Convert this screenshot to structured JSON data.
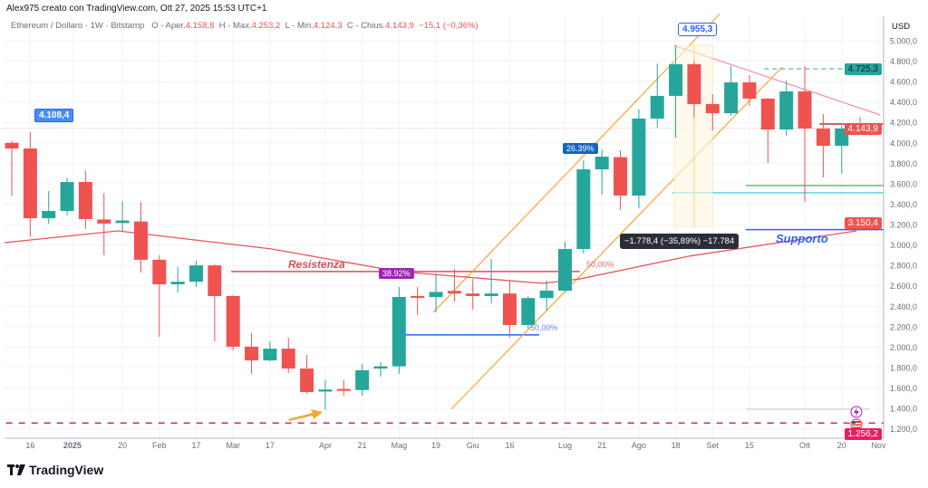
{
  "header": {
    "author_line": "Alex975 creato con TradingView.com, Ott 27, 2025 15:53 UTC+1",
    "symbol": "Ethereum / Dollaro · 1W · Bitstamp",
    "open_label": "O - Aper.",
    "open": "4.158,8",
    "high_label": "H - Max.",
    "high": "4.253,2",
    "low_label": "L - Min.",
    "low": "4.124,3",
    "close_label": "C - Chius.",
    "close": "4.143,9",
    "change": "−15,1 (−0,36%)"
  },
  "brand": "TradingView",
  "colors": {
    "up": "#26a69a",
    "down": "#ef5350",
    "ma": "#f0505a",
    "channel": "#f7a530",
    "accent": "#2962ff",
    "magenta": "#e91e63"
  },
  "chart_data": {
    "type": "candlestick",
    "currency": "USD",
    "interval": "1W",
    "ylim": [
      1150,
      5150
    ],
    "y_ticks": [
      1200,
      1400,
      1600,
      1800,
      2000,
      2200,
      2400,
      2600,
      2800,
      3000,
      3200,
      3400,
      3600,
      3800,
      4000,
      4200,
      4400,
      4600,
      4800,
      5000
    ],
    "y_tick_labels": [
      "1.200,0",
      "1.400,0",
      "1.600,0",
      "1.800,0",
      "2.000,0",
      "2.200,0",
      "2.400,0",
      "2.600,0",
      "2.800,0",
      "3.000,0",
      "3.200,0",
      "3.400,0",
      "3.600,0",
      "3.800,0",
      "4.000,0",
      "4.200,0",
      "4.400,0",
      "4.600,0",
      "4.800,0",
      "5.000,0"
    ],
    "x_ticks": [
      {
        "label": "16",
        "date": "2024-12-16"
      },
      {
        "label": "2025",
        "date": "2025-01-01"
      },
      {
        "label": "20",
        "date": "2025-01-20"
      },
      {
        "label": "Feb",
        "date": "2025-02-03"
      },
      {
        "label": "17",
        "date": "2025-02-17"
      },
      {
        "label": "Mar",
        "date": "2025-03-03"
      },
      {
        "label": "17",
        "date": "2025-03-17"
      },
      {
        "label": "Apr",
        "date": "2025-04-07"
      },
      {
        "label": "21",
        "date": "2025-04-21"
      },
      {
        "label": "Mag",
        "date": "2025-05-05"
      },
      {
        "label": "19",
        "date": "2025-05-19"
      },
      {
        "label": "Giu",
        "date": "2025-06-02"
      },
      {
        "label": "16",
        "date": "2025-06-16"
      },
      {
        "label": "Lug",
        "date": "2025-07-07"
      },
      {
        "label": "21",
        "date": "2025-07-21"
      },
      {
        "label": "Ago",
        "date": "2025-08-04"
      },
      {
        "label": "18",
        "date": "2025-08-18"
      },
      {
        "label": "Set",
        "date": "2025-09-01"
      },
      {
        "label": "15",
        "date": "2025-09-15"
      },
      {
        "label": "Ott",
        "date": "2025-10-06"
      },
      {
        "label": "20",
        "date": "2025-10-20"
      },
      {
        "label": "Nov",
        "date": "2025-11-03"
      }
    ],
    "first_week": "2024-12-09",
    "candles": [
      [
        4000,
        4020,
        3480,
        3945
      ],
      [
        3945,
        4108.4,
        3080,
        3262
      ],
      [
        3262,
        3528,
        3209,
        3333
      ],
      [
        3333,
        3660,
        3290,
        3617
      ],
      [
        3617,
        3730,
        3156,
        3254
      ],
      [
        3250,
        3510,
        2899,
        3210
      ],
      [
        3215,
        3430,
        3138,
        3240
      ],
      [
        3230,
        3422,
        2730,
        2855
      ],
      [
        2855,
        2900,
        2100,
        2615
      ],
      [
        2615,
        2784,
        2535,
        2640
      ],
      [
        2640,
        2846,
        2590,
        2800
      ],
      [
        2800,
        2810,
        2057,
        2500
      ],
      [
        2500,
        2510,
        1968,
        2004
      ],
      [
        2004,
        2137,
        1738,
        1870
      ],
      [
        1870,
        2057,
        1862,
        1985
      ],
      [
        1985,
        2092,
        1747,
        1790
      ],
      [
        1790,
        1924,
        1543,
        1560
      ],
      [
        1565,
        1676,
        1385,
        1585
      ],
      [
        1590,
        1676,
        1525,
        1580
      ],
      [
        1580,
        1835,
        1525,
        1773
      ],
      [
        1790,
        1853,
        1710,
        1812
      ],
      [
        1812,
        2589,
        1738,
        2491
      ],
      [
        2500,
        2589,
        2314,
        2488
      ],
      [
        2490,
        2722,
        2340,
        2540
      ],
      [
        2550,
        2766,
        2447,
        2525
      ],
      [
        2525,
        2668,
        2367,
        2500
      ],
      [
        2500,
        2863,
        2429,
        2525
      ],
      [
        2525,
        2650,
        2092,
        2216
      ],
      [
        2216,
        2500,
        2181,
        2480
      ],
      [
        2480,
        2650,
        2358,
        2553
      ],
      [
        2553,
        3032,
        2540,
        2961
      ],
      [
        2961,
        3830,
        2917,
        3741
      ],
      [
        3741,
        3936,
        3493,
        3865
      ],
      [
        3860,
        3927,
        3342,
        3484
      ],
      [
        3484,
        4330,
        3360,
        4238
      ],
      [
        4238,
        4778,
        4150,
        4460
      ],
      [
        4460,
        4955.3,
        4050,
        4770
      ],
      [
        4770,
        4800,
        4246,
        4380
      ],
      [
        4380,
        4477,
        4122,
        4290
      ],
      [
        4290,
        4752,
        4264,
        4592
      ],
      [
        4592,
        4663,
        4362,
        4433
      ],
      [
        4433,
        4440,
        3803,
        4131
      ],
      [
        4131,
        4610,
        4069,
        4504
      ],
      [
        4504,
        4752,
        3422,
        4140
      ],
      [
        4140,
        4282,
        3661,
        3972
      ],
      [
        3972,
        4167,
        3697,
        4140
      ],
      [
        4158.8,
        4253.2,
        4124.3,
        4143.9
      ]
    ],
    "moving_average": [
      [
        -0.4,
        3023
      ],
      [
        5.75,
        3138
      ],
      [
        14.1,
        2961
      ],
      [
        21,
        2739
      ],
      [
        28.8,
        2624
      ],
      [
        30.8,
        2668
      ],
      [
        36.7,
        2890
      ],
      [
        45.8,
        3138
      ]
    ],
    "price_labels": {
      "last": "4.143,9",
      "level_high": "4.725,3",
      "ma": "3.150,4",
      "low_level": "1.256,2"
    },
    "levels": [
      {
        "price": 2740,
        "from": 11.9,
        "to": 30.8,
        "color": "#e04a58",
        "width": 1.5,
        "dash": ""
      },
      {
        "price": 2120,
        "from": 21,
        "to": 28.6,
        "color": "#2962ff",
        "width": 1.5,
        "dash": ""
      },
      {
        "price": 4725.3,
        "from": 40.8,
        "to": 46.5,
        "color": "#26a69a",
        "width": 1,
        "dash": "5,4"
      },
      {
        "price": 4184,
        "from": 43.8,
        "to": 47.5,
        "color": "#b7393f",
        "width": 1.5,
        "dash": ""
      },
      {
        "price": 3582,
        "from": 39.8,
        "to": 47.5,
        "color": "#43a047",
        "width": 1.2,
        "dash": ""
      },
      {
        "price": 3511,
        "from": 35.8,
        "to": 47.5,
        "color": "#26c6da",
        "width": 1.2,
        "dash": ""
      },
      {
        "price": 3150.4,
        "from": 39.8,
        "to": 47.5,
        "color": "#2962ff",
        "width": 1.5,
        "dash": ""
      },
      {
        "price": 1392,
        "from": 39.8,
        "to": 46.5,
        "color": "#c8c8c8",
        "width": 1,
        "dash": ""
      },
      {
        "price": 1256.2,
        "from": -1,
        "to": 47.5,
        "color": "#e91e63",
        "width": 1.5,
        "dash": "7,7"
      },
      {
        "price": 4143.9,
        "from": -1,
        "to": 47.5,
        "color": "#f5a0a0",
        "width": 1,
        "dash": "1,2"
      }
    ],
    "trendlines": [
      {
        "p1": [
          35.9,
          4955.3
        ],
        "p2": [
          47.1,
          4273
        ],
        "color": "#f48fb1"
      },
      {
        "p1": [
          22.85,
          2340
        ],
        "p2": [
          38.4,
          5265
        ],
        "color": "#f7a530"
      },
      {
        "p1": [
          23.83,
          1392
        ],
        "p2": [
          41.77,
          4743
        ],
        "color": "#f7a530"
      }
    ],
    "annotations": {
      "high_2024": "4.108,4",
      "high_2025": "4.955,3",
      "resistance": "Resistenza",
      "support": "Supporto",
      "rally_pct_1": "38.92%",
      "rally_pct_2": "26.39%",
      "fib_1": "50,00%",
      "fib_2": "50,00%",
      "measure": "−1.778,4 (−35,89%) −17.784"
    }
  }
}
